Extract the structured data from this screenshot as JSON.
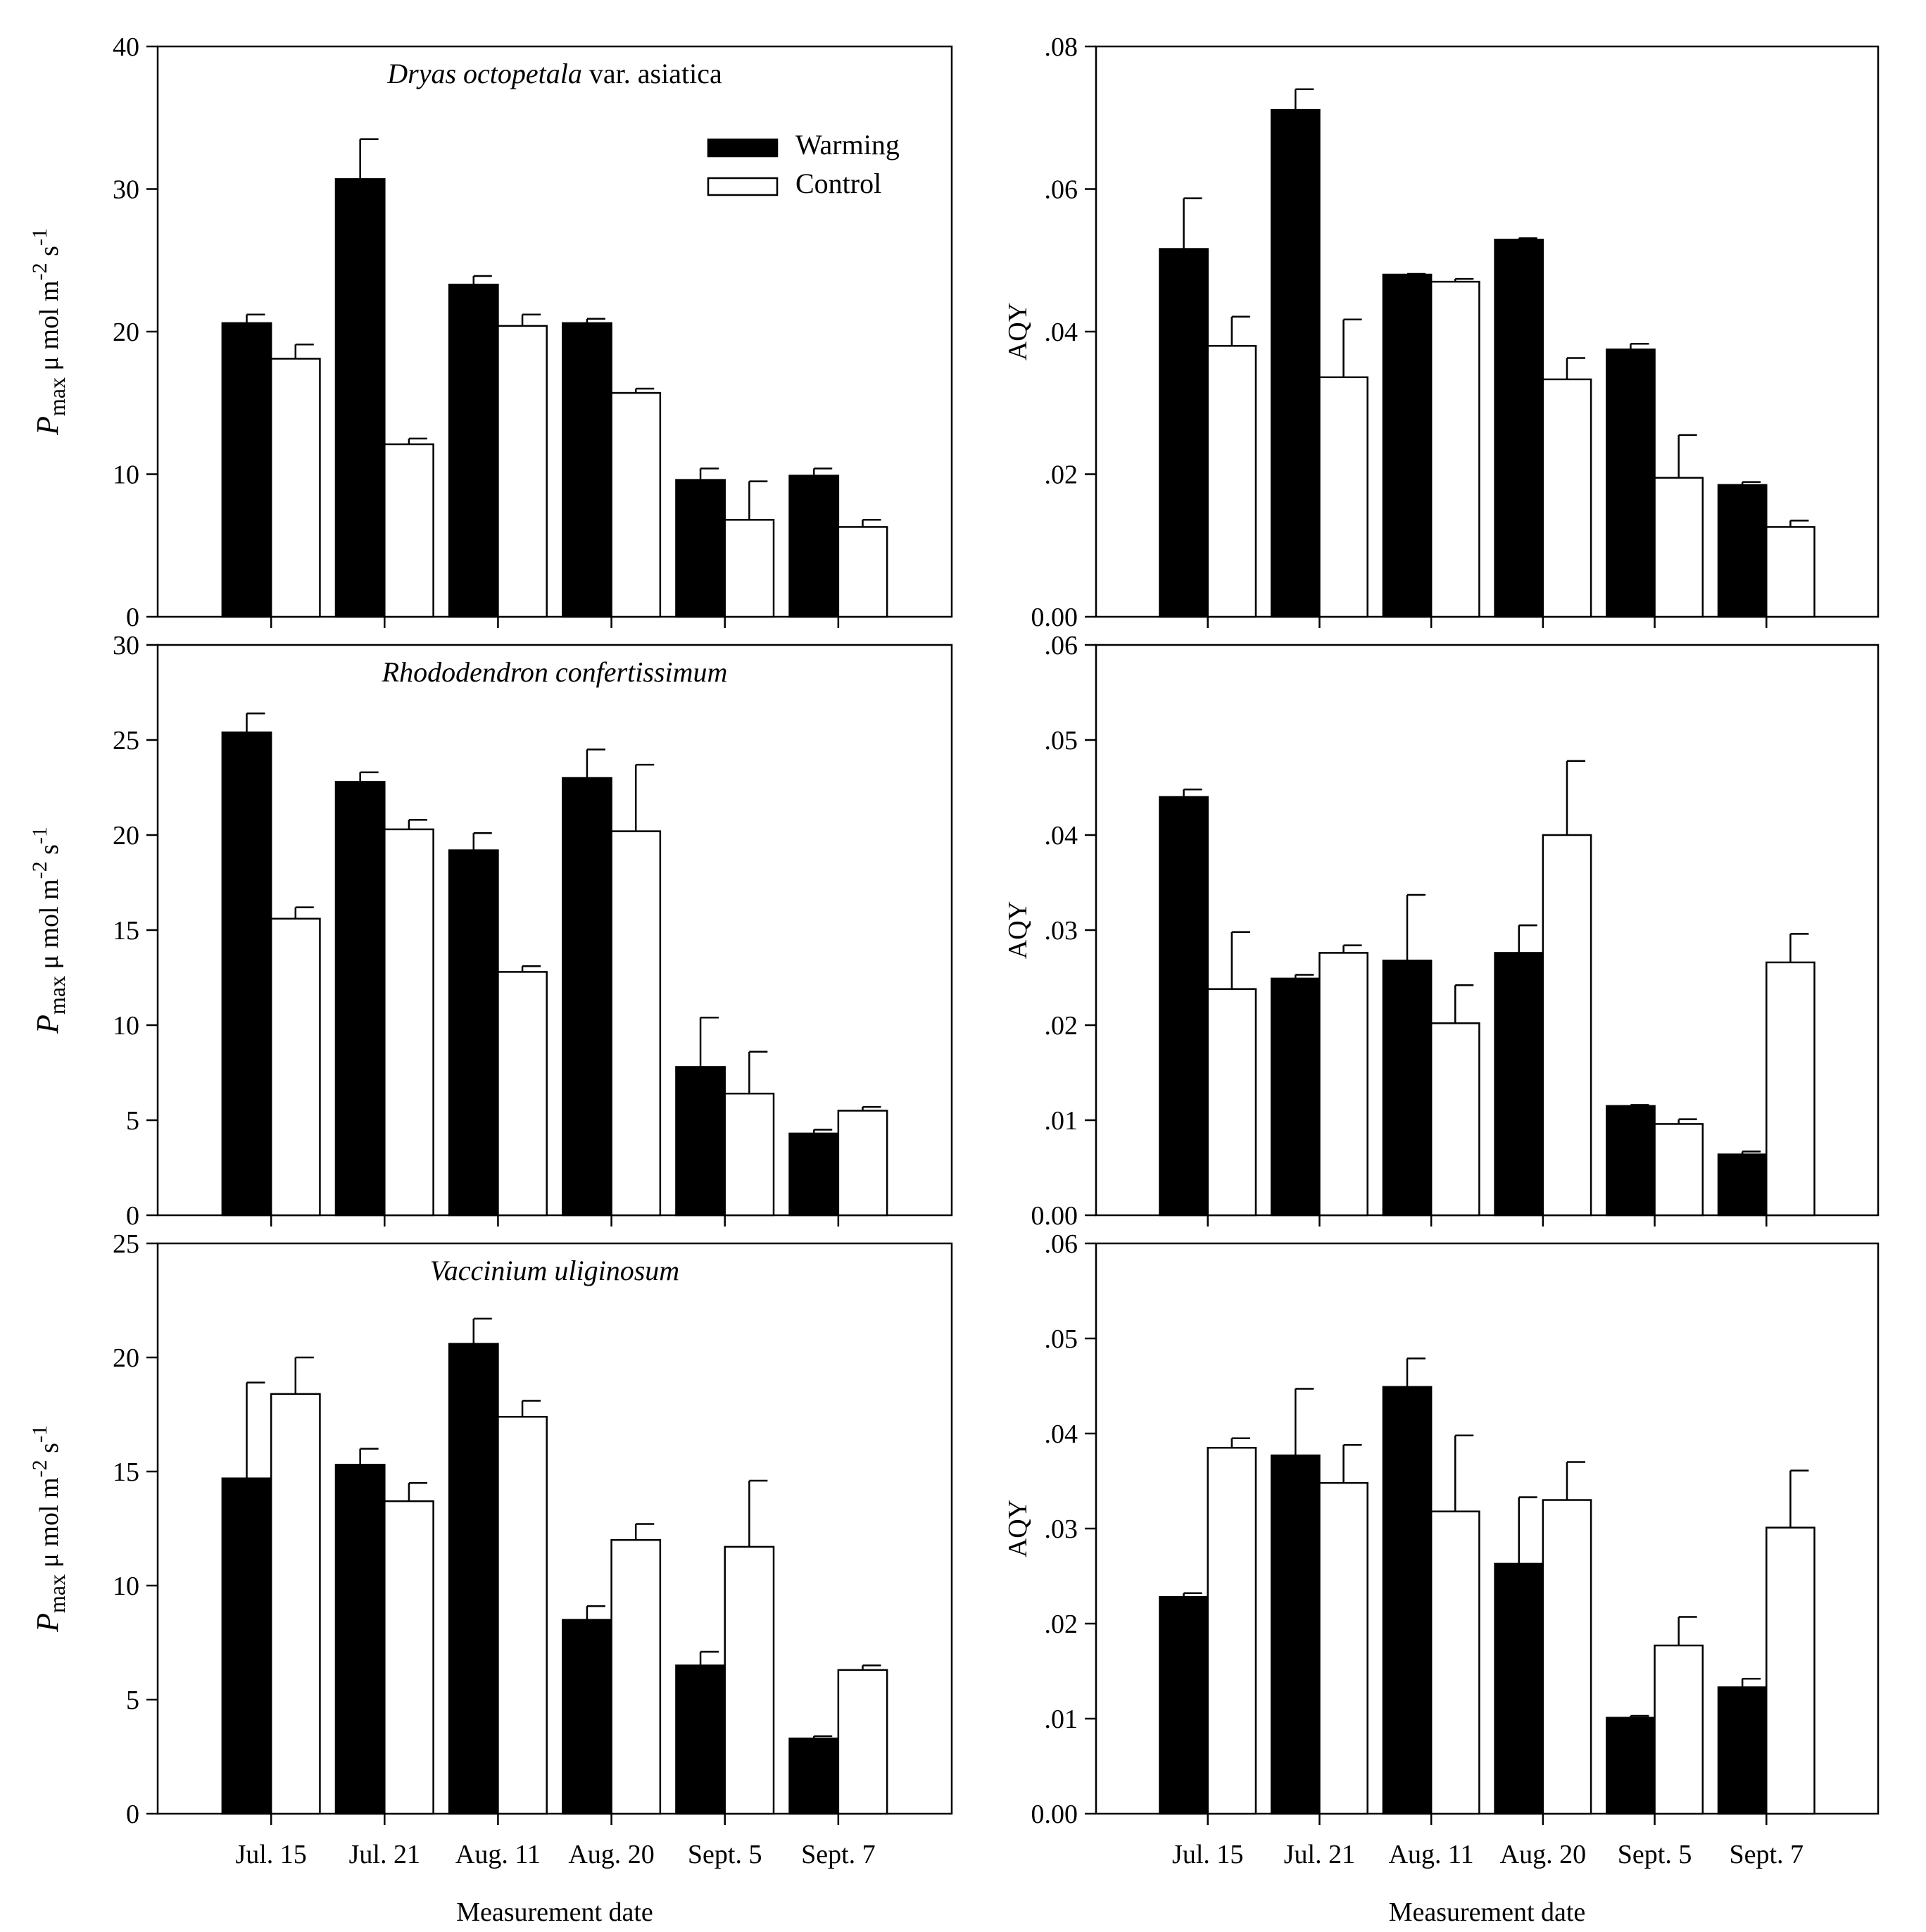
{
  "figure": {
    "x_axis_title": "Measurement date",
    "legend": {
      "placement": "top-right of first panel",
      "entries": [
        "Warming",
        "Control"
      ]
    },
    "colors": {
      "warming": "#000000",
      "control": "#ffffff",
      "stroke": "#000000"
    }
  },
  "chart_data": [
    {
      "id": "pmax-dryas",
      "type": "bar",
      "row": 0,
      "col": 0,
      "title_italic": "Dryas octopetala",
      "title_plain": " var. asiatica",
      "ylabel": {
        "main": "P",
        "sub": "max",
        "rest": " μ mol m",
        "sup1": "-2",
        "mid": " s",
        "sup2": "-1"
      },
      "categories": [
        "Jul. 15",
        "Jul. 21",
        "Aug. 11",
        "Aug. 20",
        "Sept. 5",
        "Sept. 7"
      ],
      "ylim": [
        0,
        40
      ],
      "yticks": [
        0,
        10,
        20,
        30,
        40
      ],
      "ytick_labels": [
        "0",
        "10",
        "20",
        "30",
        "40"
      ],
      "series": [
        {
          "name": "Warming",
          "values": [
            20.6,
            30.7,
            23.3,
            20.6,
            9.6,
            9.9
          ],
          "errors": [
            0.6,
            2.8,
            0.6,
            0.3,
            0.8,
            0.5
          ]
        },
        {
          "name": "Control",
          "values": [
            18.1,
            12.1,
            20.4,
            15.7,
            6.8,
            6.3
          ],
          "errors": [
            1.0,
            0.4,
            0.8,
            0.3,
            2.7,
            0.5
          ]
        }
      ]
    },
    {
      "id": "aqy-dryas",
      "type": "bar",
      "row": 0,
      "col": 1,
      "ylabel_text": "AQY",
      "categories": [
        "Jul. 15",
        "Jul. 21",
        "Aug. 11",
        "Aug. 20",
        "Sept. 5",
        "Sept. 7"
      ],
      "ylim": [
        0,
        0.08
      ],
      "yticks": [
        0,
        0.02,
        0.04,
        0.06,
        0.08
      ],
      "ytick_labels": [
        "0.00",
        ".02",
        ".04",
        ".06",
        ".08"
      ],
      "series": [
        {
          "name": "Warming",
          "values": [
            0.0516,
            0.0711,
            0.048,
            0.0529,
            0.0375,
            0.0185
          ],
          "errors": [
            0.0071,
            0.0029,
            0.0001,
            0.0002,
            0.0008,
            0.0004
          ]
        },
        {
          "name": "Control",
          "values": [
            0.038,
            0.0336,
            0.047,
            0.0333,
            0.0195,
            0.0126
          ],
          "errors": [
            0.0041,
            0.0081,
            0.0004,
            0.003,
            0.006,
            0.0009
          ]
        }
      ]
    },
    {
      "id": "pmax-rhododendron",
      "type": "bar",
      "row": 1,
      "col": 0,
      "title_italic": "Rhododendron confertissimum",
      "title_plain": "",
      "ylabel": {
        "main": "P",
        "sub": "max",
        "rest": " μ mol m",
        "sup1": "-2",
        "mid": " s",
        "sup2": "-1"
      },
      "categories": [
        "Jul. 15",
        "Jul. 21",
        "Aug. 11",
        "Aug. 20",
        "Sept. 5",
        "Sept. 7"
      ],
      "ylim": [
        0,
        30
      ],
      "yticks": [
        0,
        5,
        10,
        15,
        20,
        25,
        30
      ],
      "ytick_labels": [
        "0",
        "5",
        "10",
        "15",
        "20",
        "25",
        "30"
      ],
      "series": [
        {
          "name": "Warming",
          "values": [
            25.4,
            22.8,
            19.2,
            23.0,
            7.8,
            4.3
          ],
          "errors": [
            1.0,
            0.5,
            0.9,
            1.5,
            2.6,
            0.2
          ]
        },
        {
          "name": "Control",
          "values": [
            15.6,
            20.3,
            12.8,
            20.2,
            6.4,
            5.5
          ],
          "errors": [
            0.6,
            0.5,
            0.3,
            3.5,
            2.2,
            0.2
          ]
        }
      ]
    },
    {
      "id": "aqy-rhododendron",
      "type": "bar",
      "row": 1,
      "col": 1,
      "ylabel_text": "AQY",
      "categories": [
        "Jul. 15",
        "Jul. 21",
        "Aug. 11",
        "Aug. 20",
        "Sept. 5",
        "Sept. 7"
      ],
      "ylim": [
        0,
        0.06
      ],
      "yticks": [
        0,
        0.01,
        0.02,
        0.03,
        0.04,
        0.05,
        0.06
      ],
      "ytick_labels": [
        "0.00",
        ".01",
        ".02",
        ".03",
        ".04",
        ".05",
        ".06"
      ],
      "series": [
        {
          "name": "Warming",
          "values": [
            0.044,
            0.0249,
            0.0268,
            0.0276,
            0.0115,
            0.0064
          ],
          "errors": [
            0.0008,
            0.0004,
            0.0069,
            0.0029,
            0.0001,
            0.0003
          ]
        },
        {
          "name": "Control",
          "values": [
            0.0238,
            0.0276,
            0.0202,
            0.04,
            0.0096,
            0.0266
          ],
          "errors": [
            0.006,
            0.0008,
            0.004,
            0.0078,
            0.0005,
            0.003
          ]
        }
      ]
    },
    {
      "id": "pmax-vaccinium",
      "type": "bar",
      "row": 2,
      "col": 0,
      "title_italic": "Vaccinium uliginosum",
      "title_plain": "",
      "ylabel": {
        "main": "P",
        "sub": "max",
        "rest": " μ mol m",
        "sup1": "-2",
        "mid": " s",
        "sup2": "-1"
      },
      "categories": [
        "Jul. 15",
        "Jul. 21",
        "Aug. 11",
        "Aug. 20",
        "Sept. 5",
        "Sept. 7"
      ],
      "ylim": [
        0,
        25
      ],
      "yticks": [
        0,
        5,
        10,
        15,
        20,
        25
      ],
      "ytick_labels": [
        "0",
        "5",
        "10",
        "15",
        "20",
        "25"
      ],
      "series": [
        {
          "name": "Warming",
          "values": [
            14.7,
            15.3,
            20.6,
            8.5,
            6.5,
            3.3
          ],
          "errors": [
            4.2,
            0.7,
            1.1,
            0.6,
            0.6,
            0.1
          ]
        },
        {
          "name": "Control",
          "values": [
            18.4,
            13.7,
            17.4,
            12.0,
            11.7,
            6.3
          ],
          "errors": [
            1.6,
            0.8,
            0.7,
            0.7,
            2.9,
            0.2
          ]
        }
      ]
    },
    {
      "id": "aqy-vaccinium",
      "type": "bar",
      "row": 2,
      "col": 1,
      "ylabel_text": "AQY",
      "categories": [
        "Jul. 15",
        "Jul. 21",
        "Aug. 11",
        "Aug. 20",
        "Sept. 5",
        "Sept. 7"
      ],
      "ylim": [
        0,
        0.06
      ],
      "yticks": [
        0,
        0.01,
        0.02,
        0.03,
        0.04,
        0.05,
        0.06
      ],
      "ytick_labels": [
        "0.00",
        ".01",
        ".02",
        ".03",
        ".04",
        ".05",
        ".06"
      ],
      "series": [
        {
          "name": "Warming",
          "values": [
            0.0228,
            0.0377,
            0.0449,
            0.0263,
            0.0101,
            0.0133
          ],
          "errors": [
            0.0004,
            0.007,
            0.003,
            0.007,
            0.0002,
            0.0009
          ]
        },
        {
          "name": "Control",
          "values": [
            0.0385,
            0.0348,
            0.0318,
            0.033,
            0.0177,
            0.0301
          ],
          "errors": [
            0.001,
            0.004,
            0.008,
            0.004,
            0.003,
            0.006
          ]
        }
      ]
    }
  ]
}
